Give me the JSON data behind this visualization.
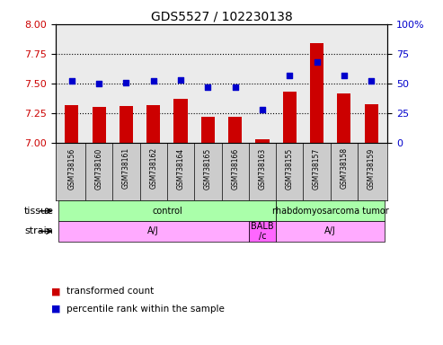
{
  "title": "GDS5527 / 102230138",
  "samples": [
    "GSM738156",
    "GSM738160",
    "GSM738161",
    "GSM738162",
    "GSM738164",
    "GSM738165",
    "GSM738166",
    "GSM738163",
    "GSM738155",
    "GSM738157",
    "GSM738158",
    "GSM738159"
  ],
  "red_values": [
    7.32,
    7.3,
    7.31,
    7.32,
    7.37,
    7.22,
    7.22,
    7.03,
    7.43,
    7.84,
    7.42,
    7.33
  ],
  "blue_values": [
    52,
    50,
    51,
    52,
    53,
    47,
    47,
    28,
    57,
    68,
    57,
    52
  ],
  "ylim_left": [
    7.0,
    8.0
  ],
  "ylim_right": [
    0,
    100
  ],
  "yticks_left": [
    7.0,
    7.25,
    7.5,
    7.75,
    8.0
  ],
  "yticks_right": [
    0,
    25,
    50,
    75,
    100
  ],
  "hlines": [
    7.25,
    7.5,
    7.75
  ],
  "bar_color": "#CC0000",
  "dot_color": "#0000CC",
  "left_axis_color": "#CC0000",
  "right_axis_color": "#0000CC",
  "plot_bg": "#EBEBEB",
  "names_bg": "#CCCCCC",
  "tissue_control_color": "#AAFFAA",
  "tissue_tumor_color": "#AAFFAA",
  "strain_aj_color": "#FFAAFF",
  "strain_balb_color": "#FF66FF",
  "tissue_row_label": "tissue",
  "strain_row_label": "strain",
  "legend_red": "transformed count",
  "legend_blue": "percentile rank within the sample",
  "tissue_configs": [
    {
      "start": 0,
      "end": 7,
      "label": "control"
    },
    {
      "start": 8,
      "end": 11,
      "label": "rhabdomyosarcoma tumor"
    }
  ],
  "strain_configs": [
    {
      "start": 0,
      "end": 6,
      "label": "A/J",
      "color_key": "aj"
    },
    {
      "start": 7,
      "end": 7,
      "label": "BALB\n/c",
      "color_key": "balb"
    },
    {
      "start": 8,
      "end": 11,
      "label": "A/J",
      "color_key": "aj"
    }
  ]
}
